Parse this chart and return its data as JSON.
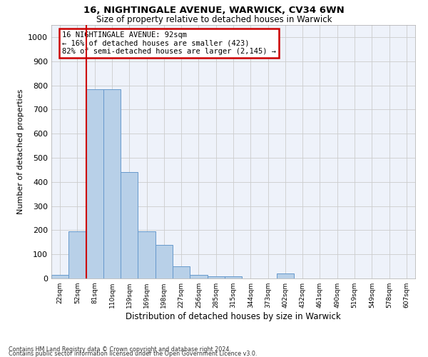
{
  "title1": "16, NIGHTINGALE AVENUE, WARWICK, CV34 6WN",
  "title2": "Size of property relative to detached houses in Warwick",
  "xlabel": "Distribution of detached houses by size in Warwick",
  "ylabel": "Number of detached properties",
  "bar_color": "#b8d0e8",
  "bar_edge_color": "#6699cc",
  "grid_color": "#cccccc",
  "vline_color": "#cc0000",
  "annotation_text": "16 NIGHTINGALE AVENUE: 92sqm\n← 16% of detached houses are smaller (423)\n82% of semi-detached houses are larger (2,145) →",
  "annotation_box_color": "#ffffff",
  "annotation_box_edge": "#cc0000",
  "categories": [
    "22sqm",
    "52sqm",
    "81sqm",
    "110sqm",
    "139sqm",
    "169sqm",
    "198sqm",
    "227sqm",
    "256sqm",
    "285sqm",
    "315sqm",
    "344sqm",
    "373sqm",
    "402sqm",
    "432sqm",
    "461sqm",
    "490sqm",
    "519sqm",
    "549sqm",
    "578sqm",
    "607sqm"
  ],
  "bar_heights": [
    15,
    195,
    785,
    785,
    440,
    195,
    140,
    50,
    15,
    10,
    10,
    0,
    0,
    20,
    0,
    0,
    0,
    0,
    0,
    0,
    0
  ],
  "vline_index": 1.5,
  "ylim": [
    0,
    1050
  ],
  "yticks": [
    0,
    100,
    200,
    300,
    400,
    500,
    600,
    700,
    800,
    900,
    1000
  ],
  "footnote1": "Contains HM Land Registry data © Crown copyright and database right 2024.",
  "footnote2": "Contains public sector information licensed under the Open Government Licence v3.0.",
  "bg_color": "#ffffff",
  "plot_bg_color": "#eef2fa"
}
